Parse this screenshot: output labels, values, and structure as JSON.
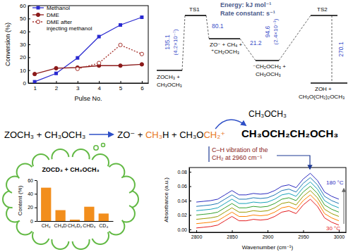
{
  "chart_data": [
    {
      "type": "line",
      "x": [
        1,
        2,
        3,
        4,
        5,
        6
      ],
      "xlim": [
        0.7,
        6.3
      ],
      "xticks": [
        1,
        2,
        3,
        4,
        5,
        6
      ],
      "ylim": [
        0,
        60
      ],
      "yticks": [
        0,
        10,
        20,
        30,
        40,
        50,
        60
      ],
      "x_label": "Pulse No.",
      "y_label": "Conversion (%)",
      "legend": "top-left",
      "series": [
        {
          "name": "Methanol",
          "color": "#2a2ad0",
          "marker": "square",
          "line_style": "solid",
          "values": [
            1,
            7.5,
            19.5,
            36,
            45,
            51
          ]
        },
        {
          "name": "DME",
          "color": "#8b1a1a",
          "marker": "circle",
          "line_style": "solid",
          "values": [
            7,
            11.5,
            12,
            13.5,
            13.5,
            14.5
          ]
        },
        {
          "name": "DME after injecting methanol",
          "color": "#a5302a",
          "marker": "open-circle",
          "line_style": "dotted",
          "values": [
            null,
            null,
            11,
            15.5,
            29.5,
            22.5
          ]
        }
      ]
    },
    {
      "type": "bar",
      "title": "ZOCD₃ + CH₃OCH₃",
      "categories": [
        "CH₄",
        "CH₃D",
        "CH₂D₂",
        "CHD₃",
        "CD₄"
      ],
      "values": [
        49,
        16,
        2,
        21,
        11
      ],
      "color": "#f28e1c",
      "y_label": "Content (%)",
      "ylim": [
        0,
        60
      ],
      "yticks": [
        0,
        20,
        40,
        60
      ]
    },
    {
      "type": "line",
      "x": [
        2800,
        2810,
        2820,
        2830,
        2840,
        2850,
        2860,
        2870,
        2880,
        2890,
        2900,
        2910,
        2920,
        2930,
        2940,
        2950,
        2960,
        2970,
        2980,
        2990,
        3000
      ],
      "xlim": [
        2790,
        3010
      ],
      "xticks": [
        2800,
        2850,
        2900,
        2950,
        3000
      ],
      "ylim": [
        -0.004,
        0.086
      ],
      "yticks": [
        {
          "value": 0,
          "label": "0.00"
        },
        {
          "value": 0.02,
          "label": "0.02"
        },
        {
          "value": 0.04,
          "label": "0.04"
        },
        {
          "value": 0.06,
          "label": "0.06"
        },
        {
          "value": 0.08,
          "label": "0.08"
        }
      ],
      "x_label": "Wavenumber (cm⁻¹)",
      "y_label": "Absorbance (a.u.)",
      "annotations": [
        "C–H vibration of the",
        "CH₂ at 2960 cm⁻¹",
        "180 °C",
        "30 °C"
      ],
      "series": [
        {
          "color": "#e41a1c",
          "values": [
            0.002,
            0.003,
            0.004,
            0.006,
            0.012,
            0.018,
            0.012,
            0.012,
            0.014,
            0.013,
            0.014,
            0.018,
            0.024,
            0.026,
            0.022,
            0.034,
            0.042,
            0.032,
            0.016,
            0.01,
            0.006
          ]
        },
        {
          "color": "#ff7f00",
          "values": [
            0.008,
            0.009,
            0.01,
            0.012,
            0.018,
            0.024,
            0.018,
            0.018,
            0.02,
            0.019,
            0.02,
            0.024,
            0.03,
            0.032,
            0.028,
            0.04,
            0.048,
            0.038,
            0.022,
            0.016,
            0.012
          ]
        },
        {
          "color": "#9a9a00",
          "values": [
            0.014,
            0.015,
            0.016,
            0.018,
            0.024,
            0.03,
            0.024,
            0.024,
            0.026,
            0.025,
            0.026,
            0.03,
            0.036,
            0.038,
            0.034,
            0.046,
            0.054,
            0.044,
            0.028,
            0.022,
            0.018
          ]
        },
        {
          "color": "#33a02c",
          "values": [
            0.02,
            0.021,
            0.022,
            0.024,
            0.03,
            0.036,
            0.03,
            0.03,
            0.032,
            0.031,
            0.032,
            0.036,
            0.042,
            0.044,
            0.04,
            0.052,
            0.06,
            0.05,
            0.034,
            0.028,
            0.024
          ]
        },
        {
          "color": "#17a2b8",
          "values": [
            0.026,
            0.027,
            0.028,
            0.03,
            0.036,
            0.042,
            0.036,
            0.036,
            0.038,
            0.037,
            0.038,
            0.042,
            0.048,
            0.05,
            0.046,
            0.058,
            0.066,
            0.056,
            0.04,
            0.034,
            0.03
          ]
        },
        {
          "color": "#1f78b4",
          "values": [
            0.032,
            0.033,
            0.034,
            0.036,
            0.042,
            0.048,
            0.042,
            0.042,
            0.044,
            0.043,
            0.044,
            0.048,
            0.054,
            0.056,
            0.052,
            0.064,
            0.072,
            0.062,
            0.046,
            0.04,
            0.036
          ]
        },
        {
          "color": "#2b2bbf",
          "values": [
            0.038,
            0.039,
            0.04,
            0.042,
            0.048,
            0.054,
            0.048,
            0.048,
            0.05,
            0.049,
            0.05,
            0.054,
            0.06,
            0.062,
            0.058,
            0.07,
            0.078,
            0.068,
            0.052,
            0.046,
            0.042
          ]
        }
      ]
    }
  ],
  "energy_diagram": {
    "units": [
      "Energy: kJ mol⁻¹",
      "Rate constant: s⁻¹"
    ],
    "levels": [
      {
        "label": [
          "ZOCH₃ +",
          "CH₃OCH₃"
        ]
      },
      {
        "label": [
          "TS1"
        ]
      },
      {
        "label": [
          "ZO⁻ + CH₄ +",
          "⁺CH₂OCH₃"
        ]
      },
      {
        "label": [
          "⁻CH₂OCH₃ +",
          "CH₃OCH₃"
        ]
      },
      {
        "label": [
          "TS2"
        ]
      },
      {
        "label": [
          "ZOH +",
          "CH₃O(CH₂)₂OCH₃"
        ]
      }
    ],
    "steps": [
      {
        "energy": "135.1",
        "rate": "(4.2×10⁻⁷)"
      },
      {
        "energy": "80.1"
      },
      {
        "energy": "21.2"
      },
      {
        "energy": "94.6",
        "rate": "(2.4×10⁻¹)"
      },
      {
        "energy": "270.1"
      }
    ]
  },
  "scheme": {
    "reactants": "ZOCH₃ + CH₃OCH₃",
    "products": [
      {
        "text": "ZO⁻ + ",
        "color": "#000000"
      },
      {
        "text": "CH₃",
        "color": "#e8771e"
      },
      {
        "text": "H + CH₃O",
        "color": "#000000"
      },
      {
        "text": "CH₂⁺",
        "color": "#e8771e"
      }
    ],
    "reagent": "CH₃OCH₃",
    "product": "CH₃OCH₂CH₂OCH₃"
  }
}
